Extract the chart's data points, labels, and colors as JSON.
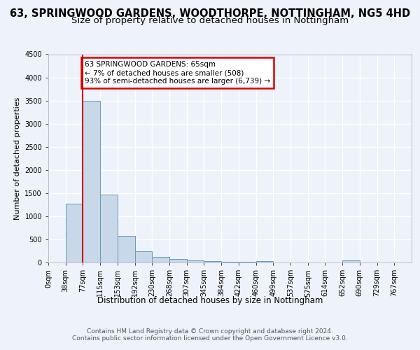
{
  "title1": "63, SPRINGWOOD GARDENS, WOODTHORPE, NOTTINGHAM, NG5 4HD",
  "title2": "Size of property relative to detached houses in Nottingham",
  "xlabel": "Distribution of detached houses by size in Nottingham",
  "ylabel": "Number of detached properties",
  "bin_labels": [
    "0sqm",
    "38sqm",
    "77sqm",
    "115sqm",
    "153sqm",
    "192sqm",
    "230sqm",
    "268sqm",
    "307sqm",
    "345sqm",
    "384sqm",
    "422sqm",
    "460sqm",
    "499sqm",
    "537sqm",
    "575sqm",
    "614sqm",
    "652sqm",
    "690sqm",
    "729sqm",
    "767sqm"
  ],
  "bar_heights": [
    5,
    1270,
    3500,
    1470,
    570,
    240,
    115,
    75,
    45,
    35,
    20,
    15,
    30,
    5,
    5,
    5,
    0,
    40,
    5,
    5,
    5
  ],
  "bar_color": "#c8d8e8",
  "bar_edge_color": "#6699bb",
  "background_color": "#eef2fb",
  "grid_color": "#ffffff",
  "ylim": [
    0,
    4500
  ],
  "yticks": [
    0,
    500,
    1000,
    1500,
    2000,
    2500,
    3000,
    3500,
    4000,
    4500
  ],
  "property_line_x": 2,
  "annotation_text": "63 SPRINGWOOD GARDENS: 65sqm\n← 7% of detached houses are smaller (508)\n93% of semi-detached houses are larger (6,739) →",
  "annotation_box_color": "#dd0000",
  "property_line_color": "#cc0000",
  "footer_text": "Contains HM Land Registry data © Crown copyright and database right 2024.\nContains public sector information licensed under the Open Government Licence v3.0.",
  "title1_fontsize": 10.5,
  "title2_fontsize": 9.5,
  "xlabel_fontsize": 8.5,
  "ylabel_fontsize": 8,
  "tick_fontsize": 7,
  "annotation_fontsize": 7.5,
  "footer_fontsize": 6.5
}
